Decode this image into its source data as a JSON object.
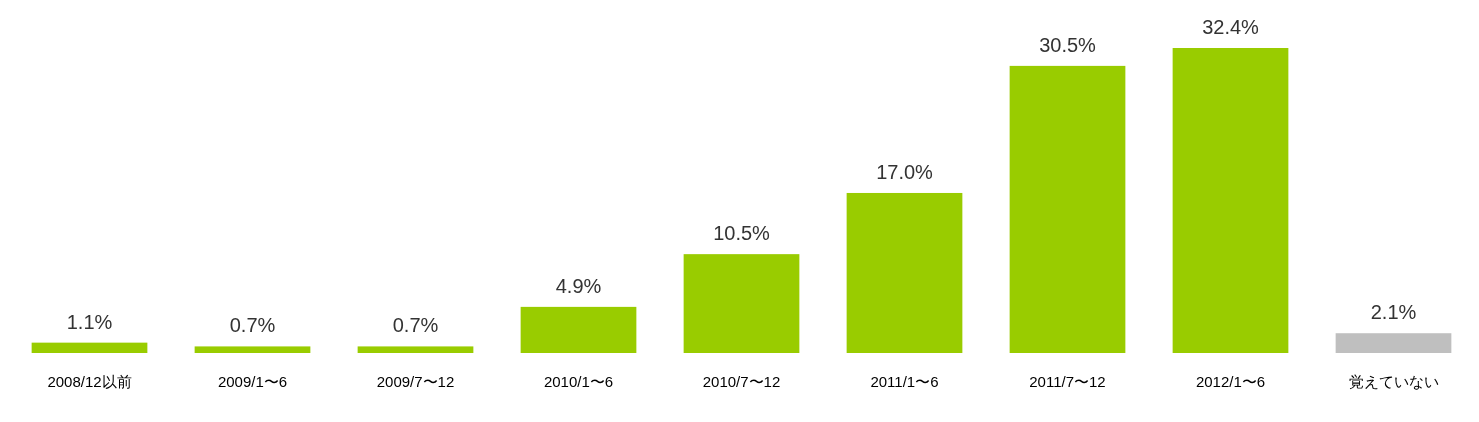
{
  "chart_data": {
    "type": "bar",
    "categories": [
      "2008/12以前",
      "2009/1〜6",
      "2009/7〜12",
      "2010/1〜6",
      "2010/7〜12",
      "2011/1〜6",
      "2011/7〜12",
      "2012/1〜6",
      "覚えていない"
    ],
    "values": [
      1.1,
      0.7,
      0.7,
      4.9,
      10.5,
      17.0,
      30.5,
      32.4,
      2.1
    ],
    "value_labels": [
      "1.1%",
      "0.7%",
      "0.7%",
      "4.9%",
      "10.5%",
      "17.0%",
      "30.5%",
      "32.4%",
      "2.1%"
    ],
    "colors": [
      "#99cc00",
      "#99cc00",
      "#99cc00",
      "#99cc00",
      "#99cc00",
      "#99cc00",
      "#99cc00",
      "#99cc00",
      "#bfbfbf"
    ]
  }
}
